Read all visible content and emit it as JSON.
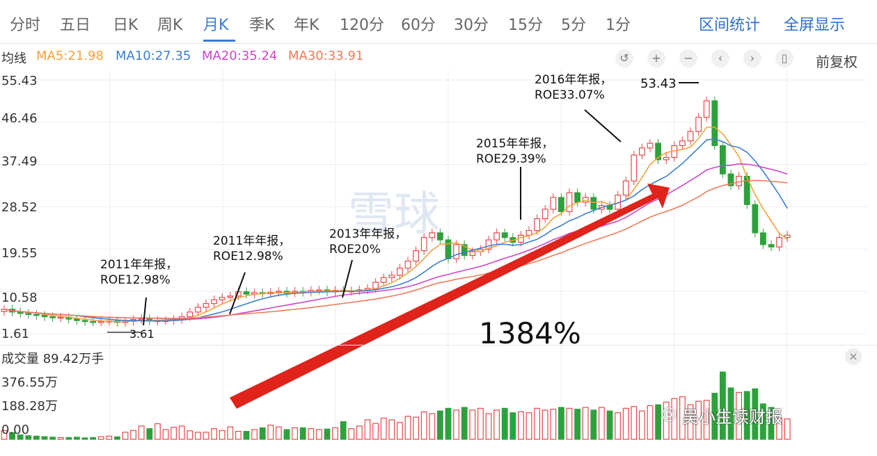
{
  "tabs": [
    "分时",
    "五日",
    "日K",
    "周K",
    "月K",
    "季K",
    "年K",
    "120分",
    "60分",
    "30分",
    "15分",
    "5分",
    "1分"
  ],
  "active_tab": "月K",
  "right_links": [
    "区间统计",
    "全屏显示"
  ],
  "ma": {
    "prefix": "均线",
    "ma5": "MA5:21.98",
    "ma10": "MA10:27.35",
    "ma20": "MA20:35.24",
    "ma30": "MA30:33.91"
  },
  "controls": {
    "undo": "↺",
    "zoom_in": "+",
    "zoom_out": "−",
    "prev": "‹",
    "next": "›",
    "candle": "▯",
    "adjust_label": "前复权"
  },
  "price_axis": [
    "55.43",
    "46.46",
    "37.49",
    "28.52",
    "19.55",
    "10.58",
    "1.61"
  ],
  "volume": {
    "title": "成交量 89.42万手",
    "axis": [
      "376.55万",
      "188.28万",
      "0.00"
    ],
    "close": "×"
  },
  "annotations": {
    "a1_line1": "2011年年报，",
    "a1_line2": "ROE12.98%",
    "a2_line1": "2011年年报，",
    "a2_line2": "ROE12.98%",
    "a3_line1": "2013年年报，",
    "a3_line2": "ROE20%",
    "a4_line1": "2015年年报，",
    "a4_line2": "ROE29.39%",
    "a5_line1": "2016年年报，",
    "a5_line2": "ROE33.07%",
    "high": "53.43",
    "low": "3.61",
    "gain": "1384%"
  },
  "watermark": {
    "center": "雪球",
    "corner": "吴小生读财报"
  },
  "colors": {
    "up": "#e8474a",
    "down": "#2ea13c",
    "ma5": "#f5a13a",
    "ma10": "#3b7fd1",
    "ma20": "#d043c8",
    "ma30": "#ef7b5a",
    "arrow": "#e0231b",
    "accent": "#3a7bd5"
  },
  "chart_data": {
    "type": "candlestick",
    "period": "monthly",
    "ylim": [
      1.61,
      55.43
    ],
    "yticks": [
      55.43,
      46.46,
      37.49,
      28.52,
      19.55,
      10.58,
      1.61
    ],
    "high": 53.43,
    "low": 3.61,
    "closes": [
      6.8,
      6.2,
      5.9,
      5.7,
      5.5,
      5.2,
      5.0,
      5.1,
      4.7,
      4.4,
      4.2,
      4.1,
      4.2,
      4.3,
      4.0,
      4.2,
      4.6,
      4.8,
      4.3,
      4.4,
      4.4,
      4.6,
      5.2,
      6.2,
      7.2,
      8.0,
      8.8,
      9.3,
      9.6,
      10.5,
      10.0,
      10.3,
      10.1,
      10.4,
      10.6,
      10.2,
      10.6,
      10.4,
      10.8,
      10.9,
      10.5,
      10.8,
      10.6,
      10.7,
      10.9,
      11.2,
      12.5,
      13.5,
      14.0,
      15.5,
      17.0,
      19.2,
      22.0,
      23.0,
      21.5,
      17.5,
      20.5,
      18.2,
      19.0,
      19.5,
      21.5,
      23.0,
      22.0,
      21.0,
      22.5,
      23.5,
      26.0,
      28.0,
      30.5,
      27.5,
      31.5,
      29.5,
      30.5,
      28.0,
      28.8,
      28.0,
      31.0,
      34.0,
      39.5,
      41.0,
      42.0,
      38.5,
      39.0,
      41.5,
      42.5,
      44.5,
      47.5,
      51.0,
      41.5,
      35.5,
      33.0,
      35.0,
      29.0,
      23.0,
      20.5,
      20.0,
      22.0,
      22.5
    ],
    "volume_unit": "万手",
    "volume_max": 376.55,
    "volumes": [
      50,
      38,
      25,
      20,
      18,
      15,
      12,
      10,
      10,
      12,
      8,
      10,
      15,
      18,
      14,
      40,
      50,
      75,
      60,
      88,
      55,
      68,
      75,
      48,
      40,
      40,
      60,
      50,
      70,
      45,
      45,
      55,
      65,
      80,
      70,
      55,
      65,
      65,
      60,
      55,
      58,
      65,
      100,
      60,
      75,
      110,
      90,
      120,
      110,
      95,
      130,
      125,
      155,
      145,
      160,
      175,
      165,
      180,
      165,
      175,
      145,
      165,
      175,
      150,
      155,
      150,
      175,
      165,
      170,
      180,
      175,
      170,
      180,
      165,
      180,
      160,
      150,
      175,
      185,
      160,
      190,
      195,
      210,
      230,
      240,
      195,
      215,
      220,
      260,
      380,
      290,
      265,
      270,
      285,
      200,
      180,
      120,
      115
    ]
  }
}
